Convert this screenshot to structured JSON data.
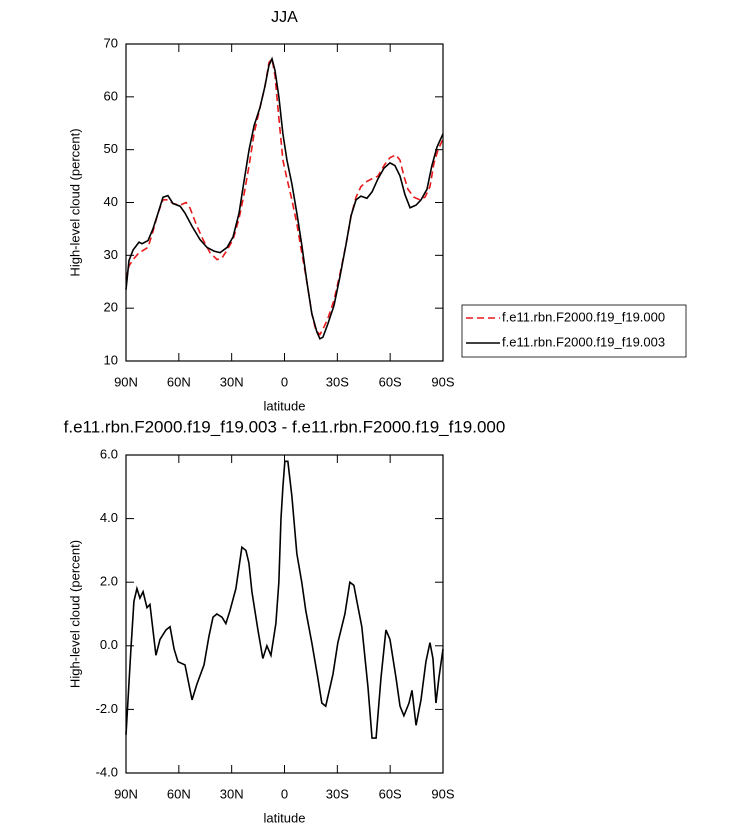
{
  "chart_data": [
    {
      "type": "line",
      "title": "JJA",
      "xlabel": "latitude",
      "ylabel": "High-level cloud (percent)",
      "xlim": [
        90,
        -90
      ],
      "xticks": [
        {
          "value": 90,
          "label": "90N"
        },
        {
          "value": 60,
          "label": "60N"
        },
        {
          "value": 30,
          "label": "30N"
        },
        0,
        {
          "value": -30,
          "label": "30S"
        },
        {
          "value": -60,
          "label": "60S"
        },
        {
          "value": -90,
          "label": "90S"
        }
      ],
      "ylim": [
        10,
        70
      ],
      "yticks": [
        10,
        20,
        30,
        40,
        50,
        60,
        70
      ],
      "legend": "right",
      "series": [
        {
          "name": "f.e11.rbn.F2000.f19_f19.000",
          "color": "#e8191b",
          "dash": true,
          "x": [
            90,
            88.3,
            86,
            82.6,
            80.9,
            77.5,
            74.7,
            71.8,
            69,
            66.2,
            63.3,
            59.3,
            55.9,
            53.7,
            50.3,
            46.3,
            42.3,
            38.3,
            35.5,
            32.6,
            29.2,
            25.8,
            23,
            20.1,
            17.3,
            13.9,
            11.1,
            8.8,
            7.1,
            5.4,
            3.2,
            0.9,
            -1.4,
            -4.2,
            -7,
            -9.8,
            -12.7,
            -15.5,
            -17.8,
            -20.1,
            -21.8,
            -24.6,
            -28.1,
            -31.5,
            -34.9,
            -37.8,
            -40.6,
            -43.4,
            -46.8,
            -49.7,
            -53.1,
            -56.5,
            -59.9,
            -63.3,
            -65.6,
            -67.8,
            -70.1,
            -73.5,
            -76.9,
            -79.8,
            -82.6,
            -84.9,
            -87.2,
            -90
          ],
          "values": [
            25.5,
            28,
            29.2,
            30.5,
            30.8,
            31.5,
            34.5,
            38,
            40.5,
            40.5,
            39.8,
            39.5,
            40,
            39,
            36,
            33,
            30.5,
            29.2,
            29.5,
            31,
            33,
            37,
            41.5,
            47,
            53,
            58,
            62,
            66.5,
            67.2,
            64,
            56,
            48,
            44.5,
            40.5,
            36,
            30.5,
            25,
            19,
            15.8,
            15,
            16,
            18,
            21.5,
            26.5,
            32,
            37.5,
            41,
            43,
            44,
            44.5,
            45,
            47,
            48.5,
            49,
            48,
            45,
            42.5,
            41,
            40.5,
            41,
            43,
            47.5,
            50,
            52
          ]
        },
        {
          "name": "f.e11.rbn.F2000.f19_f19.003",
          "color": "#000000",
          "dash": false,
          "x": [
            90,
            88.3,
            86,
            82.6,
            80.9,
            77.5,
            74.7,
            71.8,
            69,
            66.2,
            63.3,
            59.3,
            56.5,
            52.5,
            48,
            44,
            40,
            36.6,
            32.6,
            29.2,
            25.8,
            23,
            20.1,
            17.3,
            13.9,
            11.1,
            8.8,
            7.1,
            5.4,
            3.2,
            0.9,
            -1.4,
            -4.2,
            -7,
            -9.8,
            -12.7,
            -15.5,
            -18.4,
            -20.1,
            -21.8,
            -24.6,
            -28.1,
            -31.5,
            -34.9,
            -37.8,
            -40.6,
            -43.4,
            -46.8,
            -49.7,
            -53.1,
            -56.5,
            -59.9,
            -62.7,
            -65.6,
            -68.4,
            -71.3,
            -74.7,
            -77.5,
            -80.9,
            -83.7,
            -86.6,
            -90
          ],
          "values": [
            23.5,
            29,
            31,
            32.5,
            32.2,
            32.8,
            35,
            38,
            41,
            41.3,
            39.8,
            39.3,
            38,
            35.5,
            33,
            31.5,
            30.8,
            30.5,
            31.5,
            33.5,
            38,
            44,
            50,
            54.5,
            58,
            62,
            66,
            67.2,
            65,
            60,
            53,
            48,
            43.5,
            38,
            32,
            25,
            19,
            15.5,
            14.2,
            14.5,
            17,
            20.5,
            26,
            32,
            37.5,
            40.5,
            41.2,
            40.8,
            42,
            44.5,
            46.5,
            47.5,
            47,
            45,
            41.5,
            39,
            39.5,
            40.5,
            42.5,
            47,
            50.5,
            53
          ]
        }
      ]
    },
    {
      "type": "line",
      "title": "f.e11.rbn.F2000.f19_f19.003 - f.e11.rbn.F2000.f19_f19.000",
      "xlabel": "latitude",
      "ylabel": "High-level cloud (percent)",
      "xlim": [
        90,
        -90
      ],
      "xticks": [
        {
          "value": 90,
          "label": "90N"
        },
        {
          "value": 60,
          "label": "60N"
        },
        {
          "value": 30,
          "label": "30N"
        },
        0,
        {
          "value": -30,
          "label": "30S"
        },
        {
          "value": -60,
          "label": "60S"
        },
        {
          "value": -90,
          "label": "90S"
        }
      ],
      "ylim": [
        -4,
        6
      ],
      "yticks": [
        {
          "value": -4,
          "label": "-4.0"
        },
        {
          "value": -2,
          "label": "-2.0"
        },
        {
          "value": 0,
          "label": "0.0"
        },
        {
          "value": 2,
          "label": "2.0"
        },
        {
          "value": 4,
          "label": "4.0"
        },
        {
          "value": 6,
          "label": "6.0"
        }
      ],
      "series": [
        {
          "color": "#000000",
          "dash": false,
          "x": [
            90,
            87.2,
            85.5,
            83.8,
            82.1,
            80.3,
            78.1,
            76.4,
            73,
            70.7,
            67.3,
            65,
            62.7,
            60.5,
            56.5,
            52.5,
            49.7,
            45.7,
            42.9,
            40.6,
            38.4,
            35.5,
            33.3,
            31,
            27.6,
            24.2,
            21.9,
            20.2,
            18.5,
            15.1,
            12.3,
            10,
            7.7,
            4.9,
            3.2,
            2,
            0.9,
            -0.2,
            -1.9,
            -4.2,
            -7,
            -9.8,
            -12.1,
            -15.5,
            -18.9,
            -21.2,
            -23.4,
            -27.5,
            -30.3,
            -34.3,
            -37.1,
            -39.4,
            -41.1,
            -43.9,
            -47.4,
            -49.7,
            -52,
            -54.8,
            -57.6,
            -59.9,
            -63.3,
            -65.6,
            -67.8,
            -70.7,
            -72.4,
            -74.7,
            -77.5,
            -80.3,
            -82.6,
            -84.3,
            -86,
            -87.7,
            -90
          ],
          "values": [
            -2.8,
            -0.1,
            1.4,
            1.8,
            1.5,
            1.7,
            1.2,
            1.3,
            -0.3,
            0.2,
            0.5,
            0.6,
            -0.1,
            -0.5,
            -0.6,
            -1.7,
            -1.2,
            -0.6,
            0.3,
            0.9,
            1,
            0.9,
            0.7,
            1.1,
            1.8,
            3.1,
            3,
            2.6,
            1.7,
            0.5,
            -0.4,
            0,
            -0.3,
            0.7,
            2,
            4,
            5,
            5.8,
            5.8,
            4.7,
            2.9,
            2,
            1.1,
            0.1,
            -1,
            -1.8,
            -1.9,
            -0.9,
            0.1,
            1,
            2,
            1.9,
            1.4,
            0.6,
            -1.3,
            -2.9,
            -2.9,
            -1,
            0.5,
            0.2,
            -1,
            -1.9,
            -2.2,
            -1.8,
            -1.4,
            -2.5,
            -1.7,
            -0.5,
            0.1,
            -0.4,
            -1.8,
            -1,
            -0.1
          ]
        }
      ]
    }
  ]
}
